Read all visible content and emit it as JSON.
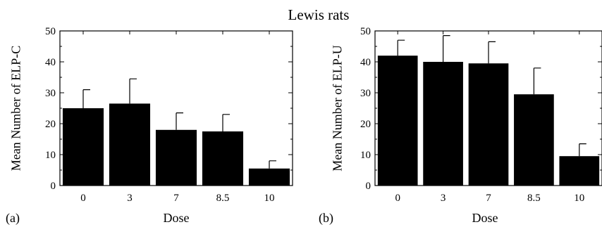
{
  "figure": {
    "title": "Lewis rats"
  },
  "chart_data": [
    {
      "type": "bar",
      "panel_label": "(a)",
      "title": "",
      "xlabel": "Dose",
      "ylabel": "Mean Number of ELP-C",
      "categories": [
        "0",
        "3",
        "7",
        "8.5",
        "10"
      ],
      "values": [
        25,
        26.5,
        18,
        17.5,
        5.5
      ],
      "errors": [
        6,
        8,
        5.5,
        5.5,
        2.5
      ],
      "ylim": [
        0,
        50
      ],
      "yticks": [
        0,
        10,
        20,
        30,
        40,
        50
      ],
      "bar_color": "#000000",
      "grid": false,
      "legend": "none"
    },
    {
      "type": "bar",
      "panel_label": "(b)",
      "title": "",
      "xlabel": "Dose",
      "ylabel": "Mean Number of ELP-U",
      "categories": [
        "0",
        "3",
        "7",
        "8.5",
        "10"
      ],
      "values": [
        42,
        40,
        39.5,
        29.5,
        9.5
      ],
      "errors": [
        5,
        8.5,
        7,
        8.5,
        4
      ],
      "ylim": [
        0,
        50
      ],
      "yticks": [
        0,
        10,
        20,
        30,
        40,
        50
      ],
      "bar_color": "#000000",
      "grid": false,
      "legend": "none"
    }
  ]
}
